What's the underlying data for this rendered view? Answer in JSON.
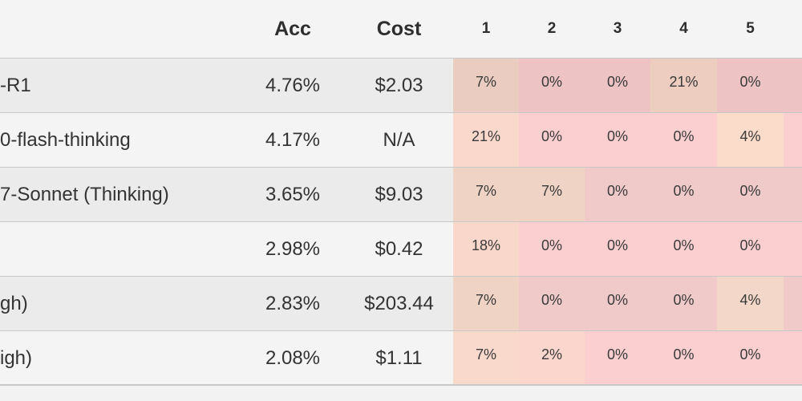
{
  "header": {
    "acc": "Acc",
    "cost": "Cost",
    "cols": [
      "1",
      "2",
      "3",
      "4",
      "5"
    ]
  },
  "rows": [
    {
      "name": "-R1",
      "acc": "4.76%",
      "cost": "$2.03",
      "pcts": [
        "7%",
        "0%",
        "0%",
        "21%",
        "0%"
      ],
      "colors": [
        "#eacdc0",
        "#edc3c3",
        "#edc3c3",
        "#eccdc0",
        "#edc3c3",
        "#edc3c3"
      ]
    },
    {
      "name": "0-flash-thinking",
      "acc": "4.17%",
      "cost": "N/A",
      "pcts": [
        "21%",
        "0%",
        "0%",
        "0%",
        "4%"
      ],
      "colors": [
        "#fad9cc",
        "#fbcfcf",
        "#fbcfcf",
        "#fbcfcf",
        "#fbdccb",
        "#fbcfcf"
      ]
    },
    {
      "name": "7-Sonnet (Thinking)",
      "acc": "3.65%",
      "cost": "$9.03",
      "pcts": [
        "7%",
        "7%",
        "0%",
        "0%",
        "0%"
      ],
      "colors": [
        "#efd3c5",
        "#efd3c5",
        "#f0c9c9",
        "#f0c9c9",
        "#f0c9c9",
        "#f0c9c9"
      ]
    },
    {
      "name": "",
      "acc": "2.98%",
      "cost": "$0.42",
      "pcts": [
        "18%",
        "0%",
        "0%",
        "0%",
        "0%"
      ],
      "colors": [
        "#f9d7ca",
        "#fbcfcf",
        "#fbcfcf",
        "#fbcfcf",
        "#fbcfcf",
        "#fbcfcf"
      ]
    },
    {
      "name": "gh)",
      "acc": "2.83%",
      "cost": "$203.44",
      "pcts": [
        "7%",
        "0%",
        "0%",
        "0%",
        "4%"
      ],
      "colors": [
        "#efd3c5",
        "#f0c9c9",
        "#f0c9c9",
        "#f0c9c9",
        "#f3d8c9",
        "#f0c9c9"
      ]
    },
    {
      "name": "igh)",
      "acc": "2.08%",
      "cost": "$1.11",
      "pcts": [
        "7%",
        "2%",
        "0%",
        "0%",
        "0%"
      ],
      "colors": [
        "#f9d9cc",
        "#fbd6cc",
        "#fbcfcf",
        "#fbcfcf",
        "#fbcfcf",
        "#fbcfcf"
      ]
    }
  ]
}
